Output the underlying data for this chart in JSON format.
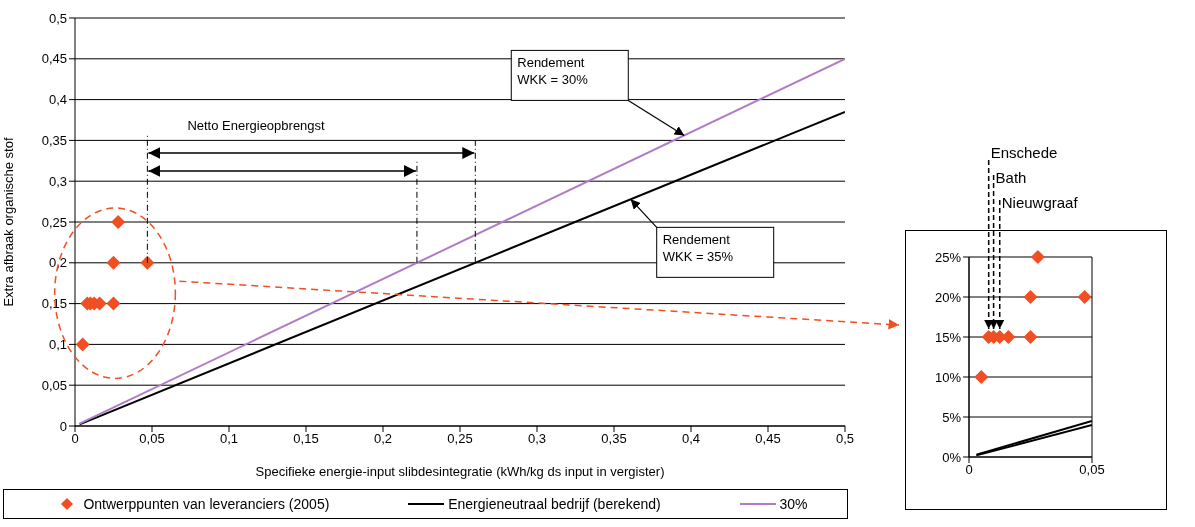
{
  "chart_data": [
    {
      "type": "scatter",
      "xlabel": "Specifieke energie-input slibdesintegratie (kWh/kg ds input in vergister)",
      "ylabel": "Extra afbraak organische stof",
      "xlim": [
        0,
        0.5
      ],
      "ylim": [
        0,
        0.5
      ],
      "xticks": [
        0,
        {
          "value": 0.05,
          "label": "0,05"
        },
        {
          "value": 0.1,
          "label": "0,1"
        },
        {
          "value": 0.15,
          "label": "0,15"
        },
        {
          "value": 0.2,
          "label": "0,2"
        },
        {
          "value": 0.25,
          "label": "0,25"
        },
        {
          "value": 0.3,
          "label": "0,3"
        },
        {
          "value": 0.35,
          "label": "0,35"
        },
        {
          "value": 0.4,
          "label": "0,4"
        },
        {
          "value": 0.45,
          "label": "0,45"
        },
        {
          "value": 0.5,
          "label": "0,5"
        }
      ],
      "yticks": [
        0,
        {
          "value": 0.05,
          "label": "0,05"
        },
        {
          "value": 0.1,
          "label": "0,1"
        },
        {
          "value": 0.15,
          "label": "0,15"
        },
        {
          "value": 0.2,
          "label": "0,2"
        },
        {
          "value": 0.25,
          "label": "0,25"
        },
        {
          "value": 0.3,
          "label": "0,3"
        },
        {
          "value": 0.35,
          "label": "0,35"
        },
        {
          "value": 0.4,
          "label": "0,4"
        },
        {
          "value": 0.45,
          "label": "0,45"
        },
        {
          "value": 0.5,
          "label": "0,5"
        }
      ],
      "grid": "y",
      "legend": "bottom",
      "annotations": [
        "Netto Energieopbrengst",
        "Rendement\nWKK = 30%",
        "Rendement\nWKK = 35%"
      ],
      "series": [
        {
          "type": "scatter",
          "name": "Ontwerppunten van leveranciers (2005)",
          "color": "#f04e23",
          "marker": "diamond",
          "x": [
            0.005,
            0.008,
            0.01,
            0.0125,
            0.016,
            0.025,
            0.025,
            0.028,
            0.047
          ],
          "values": [
            0.1,
            0.15,
            0.15,
            0.15,
            0.15,
            0.15,
            0.2,
            0.25,
            0.2
          ]
        },
        {
          "type": "line",
          "name": "Energieneutraal bedrijf (berekend)",
          "color": "#000000",
          "marker": "none",
          "x": [
            0.003,
            0.5
          ],
          "values": [
            0.002,
            0.385
          ]
        },
        {
          "type": "line",
          "name": "30%",
          "color": "#b07cc6",
          "marker": "none",
          "x": [
            0.003,
            0.5
          ],
          "values": [
            0.003,
            0.45
          ]
        }
      ]
    },
    {
      "type": "scatter",
      "xlim": [
        0,
        0.05
      ],
      "ylim": [
        0,
        0.25
      ],
      "xticks": [
        0,
        {
          "value": 0.05,
          "label": "0,05"
        }
      ],
      "yticks": [
        {
          "value": 0,
          "label": "0%"
        },
        {
          "value": 0.05,
          "label": "5%"
        },
        {
          "value": 0.1,
          "label": "10%"
        },
        {
          "value": 0.15,
          "label": "15%"
        },
        {
          "value": 0.2,
          "label": "20%"
        },
        {
          "value": 0.25,
          "label": "25%"
        }
      ],
      "grid": true,
      "annotations": [
        {
          "text": "Enschede",
          "x": 0.008,
          "y": 0.15
        },
        {
          "text": "Bath",
          "x": 0.01,
          "y": 0.15
        },
        {
          "text": "Nieuwgraaf",
          "x": 0.0125,
          "y": 0.15
        }
      ],
      "series": [
        {
          "type": "scatter",
          "color": "#f04e23",
          "marker": "diamond",
          "x": [
            0.005,
            0.008,
            0.01,
            0.0125,
            0.016,
            0.025,
            0.025,
            0.028,
            0.047
          ],
          "values": [
            0.1,
            0.15,
            0.15,
            0.15,
            0.15,
            0.15,
            0.2,
            0.25,
            0.2
          ]
        },
        {
          "type": "line",
          "color": "#000000",
          "marker": "none",
          "x": [
            0.003,
            0.05
          ],
          "values": [
            0.002,
            0.04
          ]
        },
        {
          "type": "line",
          "color": "#000000",
          "marker": "none",
          "x": [
            0.003,
            0.05
          ],
          "values": [
            0.003,
            0.045
          ]
        }
      ]
    }
  ]
}
